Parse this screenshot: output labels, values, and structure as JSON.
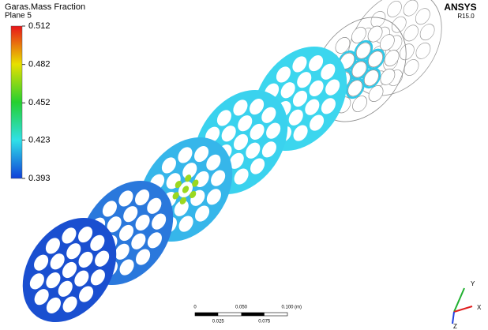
{
  "legend": {
    "title": "Garas.Mass Fraction",
    "subtitle": "Plane 5",
    "ticks": [
      0.512,
      0.482,
      0.452,
      0.423,
      0.393
    ]
  },
  "brand": {
    "name": "ANSYS",
    "version": "R15.0"
  },
  "scale_bar": {
    "top_ticks": [
      {
        "value": 0,
        "label": "0"
      },
      {
        "value": 0.05,
        "label": "0.050"
      },
      {
        "value": 0.1,
        "label": "0.100"
      }
    ],
    "bottom_ticks": [
      {
        "value": 0.025,
        "label": "0.025"
      },
      {
        "value": 0.075,
        "label": "0.075"
      }
    ],
    "unit": "(m)"
  },
  "axes": {
    "y": "Y",
    "x": "X",
    "z": "Z"
  }
}
